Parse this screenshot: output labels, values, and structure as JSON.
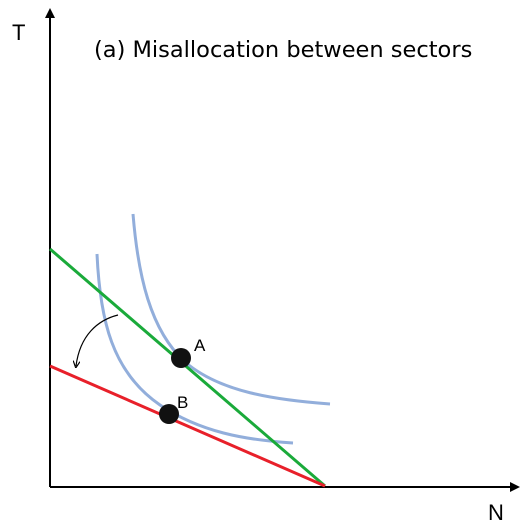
{
  "title": "(a) Misallocation between sectors",
  "axes": {
    "x_label": "N",
    "y_label": "T"
  },
  "points": [
    {
      "label": "A"
    },
    {
      "label": "B"
    }
  ],
  "colors": {
    "axis": "#000000",
    "green_line": "#1aaa3a",
    "red_line": "#e8202a",
    "indifference_curve": "#92aedb",
    "point": "#111111",
    "arrow": "#000000"
  }
}
